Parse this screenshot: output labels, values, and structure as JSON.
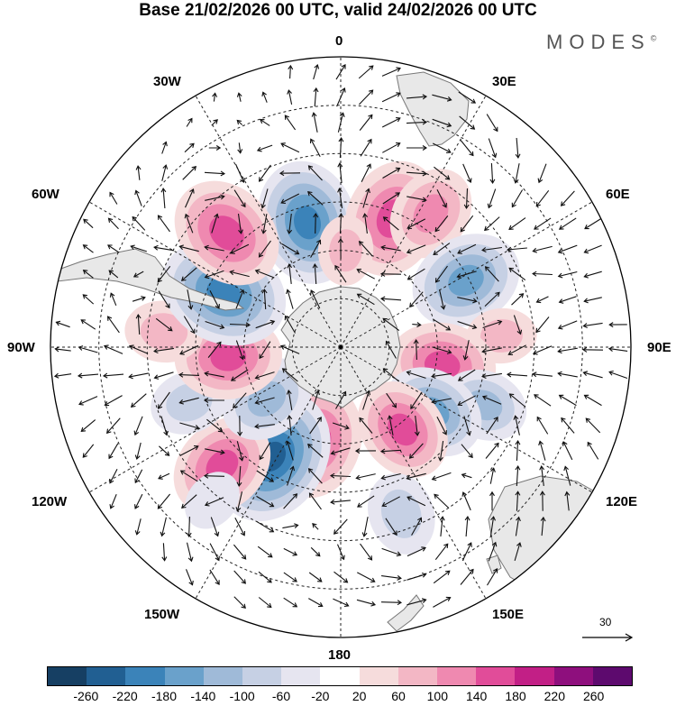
{
  "title": "Base 21/02/2026 00 UTC, valid 24/02/2026 00 UTC",
  "logo": "MODES",
  "logo_mark": "©",
  "longitude_labels": {
    "lon_0": "0",
    "lon_30e": "30E",
    "lon_60e": "60E",
    "lon_90e": "90E",
    "lon_120e": "120E",
    "lon_150e": "150E",
    "lon_180": "180",
    "lon_150w": "150W",
    "lon_120w": "120W",
    "lon_90w": "90W",
    "lon_60w": "60W",
    "lon_30w": "30W"
  },
  "reference_vector": {
    "label": "30"
  },
  "colorbar": {
    "colors": [
      "#163f63",
      "#215f92",
      "#3b83b9",
      "#6aa1cb",
      "#9fbad8",
      "#c6d0e4",
      "#e6e5f0",
      "#ffffff",
      "#f6dcdc",
      "#f3b7c5",
      "#ef89b0",
      "#e14c99",
      "#c21f86",
      "#8e0f7d",
      "#5d0a6e"
    ],
    "tick_labels": [
      "-260",
      "-220",
      "-180",
      "-140",
      "-100",
      "-60",
      "-20",
      "20",
      "60",
      "100",
      "140",
      "180",
      "220",
      "260"
    ]
  },
  "anomaly_centers": [
    {
      "id": "neg-30w",
      "lon": -15,
      "lat": -50,
      "value": -190
    },
    {
      "id": "pos-20e",
      "lon": 22,
      "lat": -47,
      "value": 175
    },
    {
      "id": "pos-35e",
      "lon": 34,
      "lat": -40,
      "value": 120
    },
    {
      "id": "neg-60e",
      "lon": 62,
      "lat": -46,
      "value": -160
    },
    {
      "id": "pos-90e",
      "lon": 86,
      "lat": -40,
      "value": 60
    },
    {
      "id": "pos-100e",
      "lon": 100,
      "lat": -58,
      "value": 150
    },
    {
      "id": "neg-110e",
      "lon": 112,
      "lat": -42,
      "value": -100
    },
    {
      "id": "neg-125e",
      "lon": 125,
      "lat": -55,
      "value": -140
    },
    {
      "id": "pos-145e",
      "lon": 143,
      "lat": -58,
      "value": 140
    },
    {
      "id": "neg-160e",
      "lon": 160,
      "lat": -35,
      "value": -90
    },
    {
      "id": "pos-165w",
      "lon": -165,
      "lat": -60,
      "value": 170
    },
    {
      "id": "neg-150w",
      "lon": -148,
      "lat": -50,
      "value": -220
    },
    {
      "id": "pos-135w",
      "lon": -135,
      "lat": -38,
      "value": 150
    },
    {
      "id": "neg-130w",
      "lon": -125,
      "lat": -62,
      "value": -120
    },
    {
      "id": "neg-110w",
      "lon": -110,
      "lat": -40,
      "value": -80
    },
    {
      "id": "pos-95w",
      "lon": -95,
      "lat": -55,
      "value": 150
    },
    {
      "id": "pos-85w",
      "lon": -85,
      "lat": -35,
      "value": 80
    },
    {
      "id": "neg-65w",
      "lon": -65,
      "lat": -50,
      "value": -200
    },
    {
      "id": "pos-45w",
      "lon": -45,
      "lat": -40,
      "value": 170
    },
    {
      "id": "pos-0",
      "lon": 3,
      "lat": -60,
      "value": 60
    },
    {
      "id": "neg-140w",
      "lon": -140,
      "lat": -28,
      "value": -40
    }
  ]
}
